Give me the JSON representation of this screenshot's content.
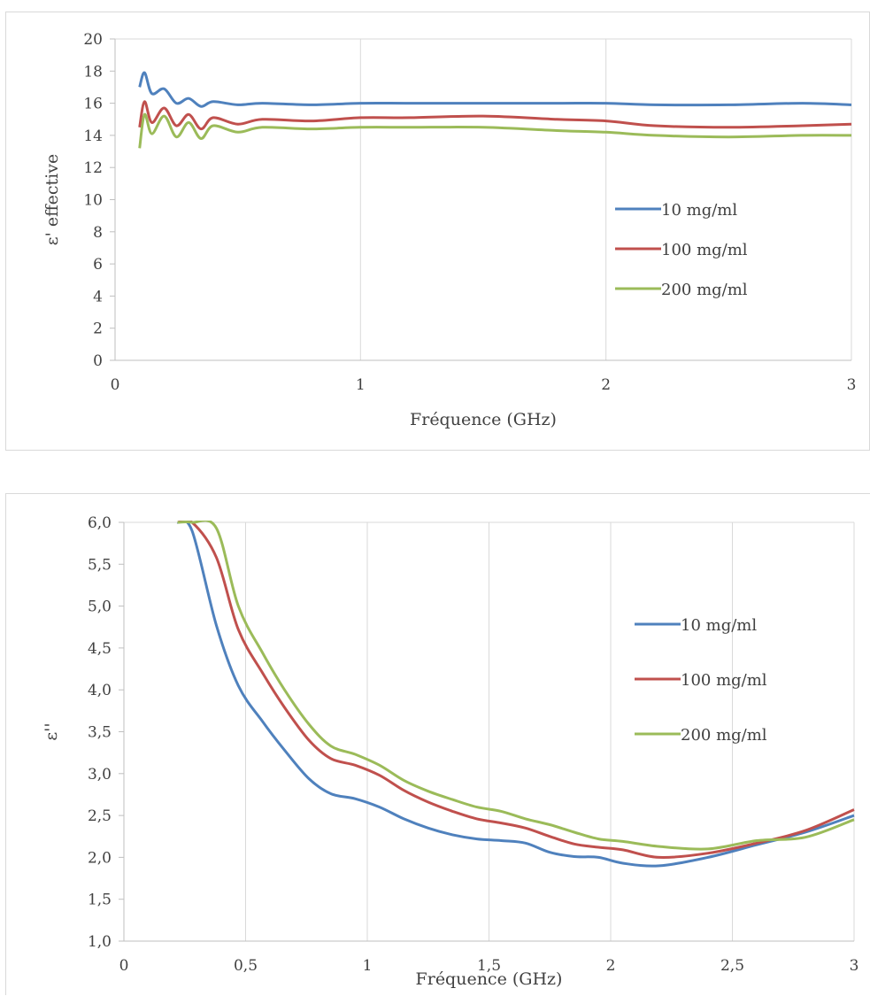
{
  "chart_data": [
    {
      "type": "line",
      "xlabel": "Fréquence (GHz)",
      "ylabel": "ε' effective",
      "xlim": [
        0,
        3
      ],
      "ylim": [
        0,
        20
      ],
      "x_ticks": [
        "0",
        "1",
        "2",
        "3"
      ],
      "y_ticks": [
        "0",
        "2",
        "4",
        "6",
        "8",
        "10",
        "12",
        "14",
        "16",
        "18",
        "20"
      ],
      "grid": "vertical",
      "legend_position": "right",
      "series": [
        {
          "name": "10 mg/ml",
          "color": "#4f81bd",
          "x": [
            0.1,
            0.12,
            0.15,
            0.2,
            0.25,
            0.3,
            0.35,
            0.4,
            0.5,
            0.6,
            0.8,
            1.0,
            1.2,
            1.5,
            1.8,
            2.0,
            2.2,
            2.5,
            2.8,
            3.0
          ],
          "y": [
            17.0,
            17.9,
            16.6,
            16.9,
            16.0,
            16.3,
            15.8,
            16.1,
            15.9,
            16.0,
            15.9,
            16.0,
            16.0,
            16.0,
            16.0,
            16.0,
            15.9,
            15.9,
            16.0,
            15.9
          ]
        },
        {
          "name": "100 mg/ml",
          "color": "#c0504d",
          "x": [
            0.1,
            0.12,
            0.15,
            0.2,
            0.25,
            0.3,
            0.35,
            0.4,
            0.5,
            0.6,
            0.8,
            1.0,
            1.2,
            1.5,
            1.8,
            2.0,
            2.2,
            2.5,
            2.8,
            3.0
          ],
          "y": [
            14.5,
            16.1,
            14.8,
            15.7,
            14.6,
            15.3,
            14.4,
            15.1,
            14.7,
            15.0,
            14.9,
            15.1,
            15.1,
            15.2,
            15.0,
            14.9,
            14.6,
            14.5,
            14.6,
            14.7
          ]
        },
        {
          "name": "200 mg/ml",
          "color": "#9bbb59",
          "x": [
            0.1,
            0.12,
            0.15,
            0.2,
            0.25,
            0.3,
            0.35,
            0.4,
            0.5,
            0.6,
            0.8,
            1.0,
            1.2,
            1.5,
            1.8,
            2.0,
            2.2,
            2.5,
            2.8,
            3.0
          ],
          "y": [
            13.2,
            15.3,
            14.1,
            15.2,
            13.9,
            14.8,
            13.8,
            14.6,
            14.2,
            14.5,
            14.4,
            14.5,
            14.5,
            14.5,
            14.3,
            14.2,
            14.0,
            13.9,
            14.0,
            14.0
          ]
        }
      ]
    },
    {
      "type": "line",
      "xlabel": "Fréquence (GHz)",
      "ylabel": "ε''",
      "xlim": [
        0,
        3
      ],
      "ylim": [
        1.0,
        6.0
      ],
      "x_ticks": [
        "0",
        "0,5",
        "1",
        "1,5",
        "2",
        "2,5",
        "3"
      ],
      "y_ticks": [
        "1,0",
        "1,5",
        "2,0",
        "2,5",
        "3,0",
        "3,5",
        "4,0",
        "4,5",
        "5,0",
        "5,5",
        "6,0"
      ],
      "grid": "vertical",
      "legend_position": "right",
      "series": [
        {
          "name": "10 mg/ml",
          "color": "#4f81bd",
          "x": [
            0.22,
            0.28,
            0.38,
            0.47,
            0.57,
            0.66,
            0.76,
            0.85,
            0.95,
            1.05,
            1.15,
            1.25,
            1.35,
            1.45,
            1.55,
            1.65,
            1.75,
            1.85,
            1.95,
            2.05,
            2.2,
            2.4,
            2.6,
            2.8,
            3.0
          ],
          "y": [
            6.0,
            5.9,
            4.77,
            4.05,
            3.62,
            3.28,
            2.94,
            2.76,
            2.7,
            2.6,
            2.46,
            2.35,
            2.27,
            2.22,
            2.2,
            2.17,
            2.06,
            2.01,
            2.0,
            1.93,
            1.9,
            2.0,
            2.15,
            2.3,
            2.5
          ]
        },
        {
          "name": "100 mg/ml",
          "color": "#c0504d",
          "x": [
            0.22,
            0.28,
            0.38,
            0.47,
            0.57,
            0.66,
            0.76,
            0.85,
            0.95,
            1.05,
            1.15,
            1.25,
            1.35,
            1.45,
            1.55,
            1.65,
            1.75,
            1.85,
            1.95,
            2.05,
            2.2,
            2.4,
            2.6,
            2.8,
            3.0
          ],
          "y": [
            6.0,
            6.0,
            5.58,
            4.72,
            4.2,
            3.79,
            3.4,
            3.18,
            3.1,
            2.98,
            2.8,
            2.66,
            2.55,
            2.46,
            2.41,
            2.35,
            2.25,
            2.16,
            2.12,
            2.09,
            2.0,
            2.05,
            2.17,
            2.32,
            2.57
          ]
        },
        {
          "name": "200 mg/ml",
          "color": "#9bbb59",
          "x": [
            0.22,
            0.28,
            0.38,
            0.47,
            0.57,
            0.66,
            0.76,
            0.85,
            0.95,
            1.05,
            1.15,
            1.25,
            1.35,
            1.45,
            1.55,
            1.65,
            1.75,
            1.85,
            1.95,
            2.05,
            2.2,
            2.4,
            2.6,
            2.8,
            3.0
          ],
          "y": [
            6.0,
            6.0,
            5.93,
            5.0,
            4.44,
            4.0,
            3.59,
            3.33,
            3.23,
            3.1,
            2.92,
            2.79,
            2.69,
            2.6,
            2.55,
            2.46,
            2.39,
            2.3,
            2.22,
            2.19,
            2.13,
            2.1,
            2.2,
            2.24,
            2.45
          ]
        }
      ]
    }
  ]
}
